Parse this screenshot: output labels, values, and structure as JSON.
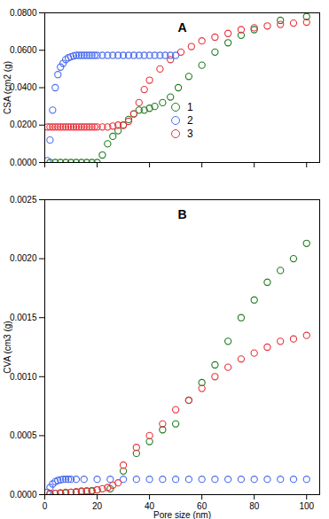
{
  "chart_data": [
    {
      "type": "scatter",
      "title": "A",
      "x_label": null,
      "y_label": "CSA (cm2 (g)",
      "xlim": [
        0,
        105
      ],
      "xticks": [
        0,
        20,
        40,
        60,
        80,
        100
      ],
      "ylim": [
        0,
        0.08
      ],
      "yticks": [
        {
          "value": 0,
          "label": "0.0000"
        },
        {
          "value": 0.02,
          "label": "0.0200"
        },
        {
          "value": 0.04,
          "label": "0.0400"
        },
        {
          "value": 0.06,
          "label": "0.0600"
        },
        {
          "value": 0.08,
          "label": "0.0800"
        }
      ],
      "tick_labels": "y",
      "grid": false,
      "legend": "center",
      "series": [
        {
          "name": "1",
          "color": "#1e7b1e",
          "marker": "open circle",
          "x": [
            2,
            4,
            6,
            8,
            10,
            12,
            14,
            16,
            18,
            20,
            22,
            24,
            26,
            28,
            30,
            32,
            34,
            36,
            38,
            40,
            42,
            45,
            48,
            51,
            55,
            60,
            65,
            70,
            75,
            80,
            90,
            100
          ],
          "values": [
            0,
            0,
            0,
            0,
            0,
            0,
            0,
            0,
            0,
            0,
            0.004,
            0.01,
            0.014,
            0.017,
            0.02,
            0.023,
            0.026,
            0.028,
            0.028,
            0.029,
            0.03,
            0.032,
            0.035,
            0.04,
            0.046,
            0.052,
            0.059,
            0.064,
            0.068,
            0.071,
            0.076,
            0.078
          ]
        },
        {
          "name": "2",
          "color": "#4a6cf0",
          "marker": "open circle",
          "x": [
            1,
            2,
            3,
            4,
            5,
            6,
            7,
            8,
            9,
            10,
            11,
            12,
            13,
            14,
            15,
            16,
            17,
            18,
            19,
            20,
            22,
            24,
            26,
            28,
            30,
            32,
            34,
            36,
            38,
            40,
            42,
            44,
            46,
            48,
            50
          ],
          "values": [
            0.001,
            0.012,
            0.028,
            0.04,
            0.047,
            0.051,
            0.053,
            0.055,
            0.056,
            0.0565,
            0.057,
            0.0573,
            0.0573,
            0.0573,
            0.0573,
            0.0573,
            0.0573,
            0.0573,
            0.0573,
            0.0573,
            0.0573,
            0.0573,
            0.0573,
            0.0573,
            0.0573,
            0.0573,
            0.0573,
            0.0573,
            0.0573,
            0.0573,
            0.0573,
            0.0573,
            0.0573,
            0.0573,
            0.0573
          ]
        },
        {
          "name": "3",
          "color": "#e8323c",
          "marker": "open circle",
          "x": [
            1,
            2,
            3,
            4,
            5,
            6,
            7,
            8,
            9,
            10,
            11,
            12,
            13,
            14,
            15,
            16,
            17,
            18,
            19,
            20,
            22,
            24,
            26,
            28,
            30,
            32,
            34,
            36,
            38,
            40,
            44,
            48,
            52,
            56,
            60,
            65,
            70,
            75,
            80,
            85,
            90,
            95,
            100
          ],
          "values": [
            0.019,
            0.019,
            0.019,
            0.019,
            0.019,
            0.019,
            0.019,
            0.019,
            0.019,
            0.019,
            0.019,
            0.019,
            0.019,
            0.019,
            0.019,
            0.019,
            0.019,
            0.019,
            0.019,
            0.019,
            0.019,
            0.019,
            0.0195,
            0.02,
            0.02,
            0.022,
            0.026,
            0.032,
            0.039,
            0.044,
            0.05,
            0.055,
            0.059,
            0.062,
            0.065,
            0.067,
            0.069,
            0.071,
            0.072,
            0.073,
            0.0738,
            0.0745,
            0.075
          ]
        }
      ]
    },
    {
      "type": "scatter",
      "title": "B",
      "x_label": "Pore size (nm)",
      "y_label": "CVA (cm3 (g)",
      "xlim": [
        0,
        105
      ],
      "xticks": [
        0,
        20,
        40,
        60,
        80,
        100
      ],
      "ylim": [
        0,
        0.0025
      ],
      "yticks": [
        {
          "value": 0,
          "label": "0.0000"
        },
        {
          "value": 0.0005,
          "label": "0.0005"
        },
        {
          "value": 0.001,
          "label": "0.0010"
        },
        {
          "value": 0.0015,
          "label": "0.0015"
        },
        {
          "value": 0.002,
          "label": "0.0020"
        },
        {
          "value": 0.0025,
          "label": "0.0025"
        }
      ],
      "grid": false,
      "series": [
        {
          "name": "1",
          "color": "#1e7b1e",
          "marker": "open circle",
          "x": [
            2,
            4,
            6,
            8,
            10,
            12,
            14,
            16,
            18,
            20,
            25,
            30,
            35,
            40,
            45,
            50,
            55,
            60,
            65,
            70,
            75,
            80,
            85,
            90,
            95,
            100
          ],
          "values": [
            5e-06,
            1e-05,
            1e-05,
            1.5e-05,
            2e-05,
            2e-05,
            2.5e-05,
            3e-05,
            3e-05,
            4e-05,
            5e-05,
            0.0002,
            0.00035,
            0.00045,
            0.00055,
            0.0006,
            0.0008,
            0.00095,
            0.0011,
            0.0013,
            0.0015,
            0.00165,
            0.0018,
            0.0019,
            0.002,
            0.00213
          ]
        },
        {
          "name": "2",
          "color": "#4a6cf0",
          "marker": "open circle",
          "x": [
            1,
            2,
            3,
            4,
            5,
            6,
            7,
            8,
            9,
            10,
            12,
            15,
            20,
            25,
            30,
            35,
            40,
            45,
            50,
            55,
            60,
            65,
            70,
            75,
            80,
            85,
            90,
            95,
            100
          ],
          "values": [
            2e-05,
            6e-05,
            9e-05,
            0.00011,
            0.00012,
            0.000125,
            0.00013,
            0.00013,
            0.00013,
            0.00013,
            0.00013,
            0.00013,
            0.00013,
            0.00013,
            0.00013,
            0.00013,
            0.00013,
            0.00013,
            0.00013,
            0.00013,
            0.00013,
            0.00013,
            0.00013,
            0.00013,
            0.00013,
            0.00013,
            0.00013,
            0.00013,
            0.00013
          ]
        },
        {
          "name": "3",
          "color": "#e8323c",
          "marker": "open circle",
          "x": [
            2,
            4,
            6,
            8,
            10,
            12,
            14,
            16,
            18,
            20,
            22,
            24,
            26,
            28,
            30,
            35,
            40,
            45,
            50,
            55,
            60,
            65,
            70,
            75,
            80,
            85,
            90,
            95,
            100
          ],
          "values": [
            1e-05,
            1e-05,
            1.5e-05,
            2e-05,
            2e-05,
            2.5e-05,
            3e-05,
            3e-05,
            3.5e-05,
            4e-05,
            5e-05,
            6e-05,
            8e-05,
            0.0001,
            0.00025,
            0.0004,
            0.0005,
            0.0006,
            0.00072,
            0.0008,
            0.0009,
            0.001,
            0.00108,
            0.00115,
            0.0012,
            0.00125,
            0.0013,
            0.00132,
            0.00135
          ]
        }
      ]
    }
  ]
}
